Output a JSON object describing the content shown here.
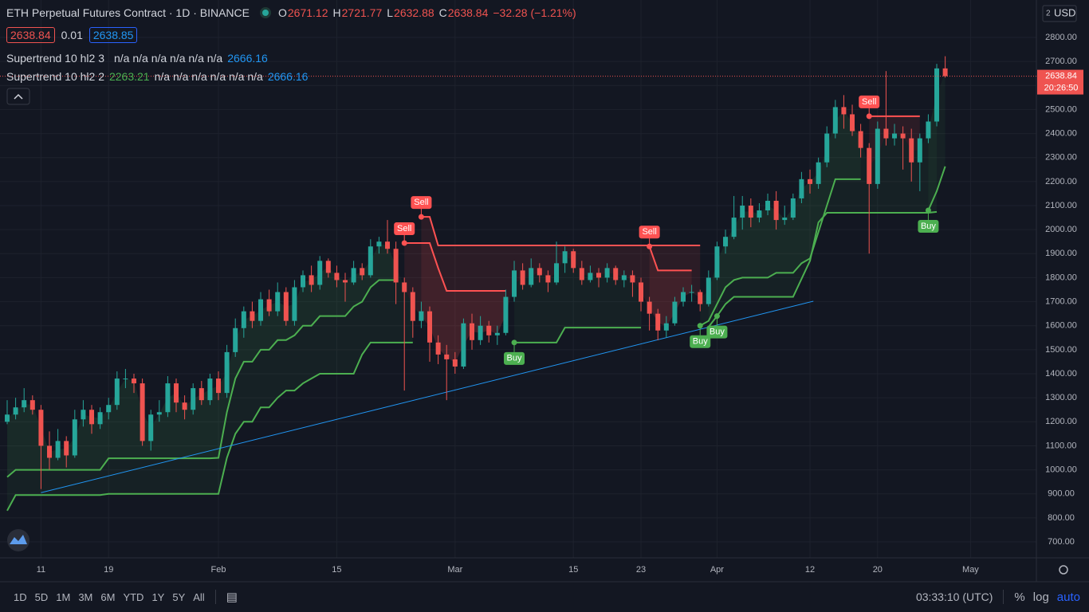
{
  "chart_data": {
    "type": "candlestick",
    "title": "ETH Perpetual Futures Contract · 1D · BINANCE",
    "ohlc_labels": [
      "O",
      "H",
      "L",
      "C"
    ],
    "change": "−32.28 (−1.21%)",
    "quote": {
      "bid": 2638.84,
      "spread": 0.01,
      "ask": 2638.85
    },
    "currency": "USD",
    "currency_badge": "2",
    "countdown": "20:26:50",
    "up_color": "#26a69a",
    "down_color": "#ef5350",
    "grid": true,
    "xlim": [
      -0.85,
      121.79
    ],
    "ylim": [
      633.7,
      2955.9
    ],
    "xticks": [
      {
        "value": 4,
        "label": "11"
      },
      {
        "value": 12,
        "label": "19"
      },
      {
        "value": 25,
        "label": "Feb"
      },
      {
        "value": 39,
        "label": "15"
      },
      {
        "value": 53,
        "label": "Mar"
      },
      {
        "value": 67,
        "label": "15"
      },
      {
        "value": 75,
        "label": "23"
      },
      {
        "value": 84,
        "label": "Apr"
      },
      {
        "value": 95,
        "label": "12"
      },
      {
        "value": 103,
        "label": "20"
      },
      {
        "value": 114,
        "label": "May"
      }
    ],
    "yticks": [
      {
        "value": 700,
        "label": "700.00"
      },
      {
        "value": 800,
        "label": "800.00"
      },
      {
        "value": 900,
        "label": "900.00"
      },
      {
        "value": 1000,
        "label": "1000.00"
      },
      {
        "value": 1100,
        "label": "1100.00"
      },
      {
        "value": 1200,
        "label": "1200.00"
      },
      {
        "value": 1300,
        "label": "1300.00"
      },
      {
        "value": 1400,
        "label": "1400.00"
      },
      {
        "value": 1500,
        "label": "1500.00"
      },
      {
        "value": 1600,
        "label": "1600.00"
      },
      {
        "value": 1700,
        "label": "1700.00"
      },
      {
        "value": 1800,
        "label": "1800.00"
      },
      {
        "value": 1900,
        "label": "1900.00"
      },
      {
        "value": 2000,
        "label": "2000.00"
      },
      {
        "value": 2100,
        "label": "2100.00"
      },
      {
        "value": 2200,
        "label": "2200.00"
      },
      {
        "value": 2300,
        "label": "2300.00"
      },
      {
        "value": 2400,
        "label": "2400.00"
      },
      {
        "value": 2500,
        "label": "2500.00"
      },
      {
        "value": 2600,
        "label": "2600.00"
      },
      {
        "value": 2700,
        "label": "2700.00"
      },
      {
        "value": 2800,
        "label": "2800.00"
      }
    ],
    "candles": [
      [
        1200,
        1290,
        1190,
        1230
      ],
      [
        1230,
        1300,
        1210,
        1260
      ],
      [
        1260,
        1340,
        1240,
        1290
      ],
      [
        1290,
        1310,
        1230,
        1250
      ],
      [
        1250,
        1270,
        920,
        1100
      ],
      [
        1100,
        1160,
        1000,
        1050
      ],
      [
        1050,
        1170,
        1040,
        1120
      ],
      [
        1120,
        1140,
        1010,
        1060
      ],
      [
        1060,
        1250,
        1050,
        1210
      ],
      [
        1210,
        1290,
        1180,
        1250
      ],
      [
        1250,
        1270,
        1150,
        1190
      ],
      [
        1190,
        1260,
        1170,
        1240
      ],
      [
        1240,
        1300,
        1210,
        1270
      ],
      [
        1270,
        1410,
        1250,
        1380
      ],
      [
        1380,
        1420,
        1340,
        1380
      ],
      [
        1380,
        1400,
        1320,
        1360
      ],
      [
        1360,
        1380,
        1100,
        1120
      ],
      [
        1120,
        1250,
        1080,
        1230
      ],
      [
        1230,
        1290,
        1200,
        1240
      ],
      [
        1240,
        1390,
        1220,
        1360
      ],
      [
        1360,
        1380,
        1240,
        1280
      ],
      [
        1280,
        1310,
        1210,
        1250
      ],
      [
        1250,
        1360,
        1230,
        1340
      ],
      [
        1340,
        1370,
        1270,
        1290
      ],
      [
        1290,
        1400,
        1270,
        1380
      ],
      [
        1380,
        1410,
        1290,
        1320
      ],
      [
        1320,
        1520,
        1300,
        1490
      ],
      [
        1490,
        1630,
        1470,
        1590
      ],
      [
        1590,
        1680,
        1550,
        1660
      ],
      [
        1660,
        1700,
        1590,
        1620
      ],
      [
        1620,
        1740,
        1600,
        1710
      ],
      [
        1710,
        1750,
        1640,
        1660
      ],
      [
        1660,
        1780,
        1640,
        1740
      ],
      [
        1740,
        1760,
        1600,
        1620
      ],
      [
        1620,
        1790,
        1600,
        1760
      ],
      [
        1760,
        1830,
        1740,
        1810
      ],
      [
        1810,
        1850,
        1740,
        1770
      ],
      [
        1770,
        1890,
        1750,
        1870
      ],
      [
        1870,
        1880,
        1800,
        1820
      ],
      [
        1820,
        1850,
        1760,
        1790
      ],
      [
        1790,
        1820,
        1700,
        1780
      ],
      [
        1780,
        1870,
        1770,
        1840
      ],
      [
        1840,
        1860,
        1790,
        1810
      ],
      [
        1810,
        1960,
        1800,
        1930
      ],
      [
        1930,
        1970,
        1900,
        1950
      ],
      [
        1950,
        2040,
        1900,
        1920
      ],
      [
        1920,
        1950,
        1690,
        1780
      ],
      [
        1780,
        1800,
        1330,
        1740
      ],
      [
        1740,
        1760,
        1550,
        1620
      ],
      [
        1620,
        1700,
        1590,
        1660
      ],
      [
        1660,
        1680,
        1450,
        1530
      ],
      [
        1530,
        1560,
        1440,
        1480
      ],
      [
        1480,
        1520,
        1290,
        1460
      ],
      [
        1460,
        1490,
        1400,
        1430
      ],
      [
        1430,
        1630,
        1420,
        1610
      ],
      [
        1610,
        1650,
        1500,
        1540
      ],
      [
        1540,
        1640,
        1520,
        1600
      ],
      [
        1600,
        1620,
        1530,
        1560
      ],
      [
        1560,
        1600,
        1520,
        1570
      ],
      [
        1570,
        1750,
        1560,
        1720
      ],
      [
        1720,
        1870,
        1700,
        1830
      ],
      [
        1830,
        1860,
        1750,
        1770
      ],
      [
        1770,
        1880,
        1760,
        1840
      ],
      [
        1840,
        1860,
        1780,
        1810
      ],
      [
        1810,
        1830,
        1740,
        1780
      ],
      [
        1780,
        1950,
        1770,
        1860
      ],
      [
        1860,
        1930,
        1820,
        1910
      ],
      [
        1910,
        1920,
        1820,
        1840
      ],
      [
        1840,
        1870,
        1770,
        1790
      ],
      [
        1790,
        1850,
        1780,
        1820
      ],
      [
        1820,
        1840,
        1760,
        1800
      ],
      [
        1800,
        1860,
        1780,
        1840
      ],
      [
        1840,
        1850,
        1770,
        1790
      ],
      [
        1790,
        1830,
        1760,
        1810
      ],
      [
        1810,
        1830,
        1720,
        1780
      ],
      [
        1780,
        1800,
        1660,
        1700
      ],
      [
        1700,
        1720,
        1580,
        1650
      ],
      [
        1650,
        1670,
        1540,
        1580
      ],
      [
        1580,
        1640,
        1550,
        1610
      ],
      [
        1610,
        1720,
        1600,
        1700
      ],
      [
        1700,
        1760,
        1680,
        1740
      ],
      [
        1740,
        1770,
        1700,
        1740
      ],
      [
        1740,
        1750,
        1660,
        1690
      ],
      [
        1690,
        1830,
        1680,
        1800
      ],
      [
        1800,
        1950,
        1790,
        1930
      ],
      [
        1930,
        2000,
        1900,
        1970
      ],
      [
        1970,
        2140,
        1960,
        2050
      ],
      [
        2050,
        2140,
        2000,
        2100
      ],
      [
        2100,
        2130,
        2010,
        2050
      ],
      [
        2050,
        2110,
        2030,
        2080
      ],
      [
        2080,
        2150,
        2060,
        2120
      ],
      [
        2120,
        2160,
        2000,
        2040
      ],
      [
        2040,
        2100,
        2020,
        2050
      ],
      [
        2050,
        2150,
        2040,
        2130
      ],
      [
        2130,
        2240,
        2110,
        2210
      ],
      [
        2210,
        2250,
        2150,
        2190
      ],
      [
        2190,
        2300,
        2170,
        2280
      ],
      [
        2280,
        2430,
        2260,
        2400
      ],
      [
        2400,
        2540,
        2380,
        2510
      ],
      [
        2510,
        2560,
        2420,
        2480
      ],
      [
        2480,
        2520,
        2390,
        2410
      ],
      [
        2410,
        2440,
        2300,
        2340
      ],
      [
        2340,
        2360,
        1900,
        2190
      ],
      [
        2190,
        2450,
        2170,
        2420
      ],
      [
        2420,
        2660,
        2350,
        2380
      ],
      [
        2380,
        2440,
        2350,
        2400
      ],
      [
        2400,
        2430,
        2250,
        2380
      ],
      [
        2380,
        2420,
        2200,
        2280
      ],
      [
        2280,
        2400,
        2160,
        2380
      ],
      [
        2380,
        2480,
        2360,
        2450
      ],
      [
        2450,
        2690,
        2430,
        2671.12
      ],
      [
        2671.12,
        2721.77,
        2632.88,
        2638.84
      ]
    ],
    "series": [
      {
        "name": "Supertrend 10 hl2 3",
        "up_color": "#4caf50",
        "down_color": "#ff5252",
        "up_fill": "rgba(76,175,80,0.07)",
        "down_fill": "rgba(255,82,82,0.1)",
        "legend_text": "n/a n/a n/a n/a n/a n/a",
        "legend_last": 2666.16,
        "up": [
          830,
          895,
          895,
          895,
          895,
          895,
          895,
          895,
          895,
          895,
          895,
          895,
          900,
          900,
          900,
          900,
          900,
          900,
          900,
          900,
          900,
          900,
          900,
          900,
          900,
          900,
          1050,
          1150,
          1200,
          1200,
          1260,
          1260,
          1300,
          1330,
          1330,
          1360,
          1380,
          1400,
          1400,
          1400,
          1400,
          1400,
          1480,
          1530,
          1530,
          1530,
          1530,
          1530,
          1530,
          null,
          null,
          null,
          null,
          null,
          null,
          null,
          null,
          null,
          null,
          null,
          null,
          null,
          null,
          null,
          null,
          null,
          null,
          null,
          null,
          null,
          null,
          null,
          null,
          null,
          null,
          null,
          null,
          null,
          null,
          null,
          null,
          null,
          null,
          1595,
          1640,
          1690,
          1720,
          1720,
          1720,
          1720,
          1720,
          1720,
          1720,
          1720,
          1795,
          1870,
          2030,
          2070,
          2070,
          2070,
          2070,
          2070,
          2070,
          2070,
          2070,
          2070,
          2070,
          2070,
          2070,
          2070,
          2073.98
        ],
        "down": [
          null,
          null,
          null,
          null,
          null,
          null,
          null,
          null,
          null,
          null,
          null,
          null,
          null,
          null,
          null,
          null,
          null,
          null,
          null,
          null,
          null,
          null,
          null,
          null,
          null,
          null,
          null,
          null,
          null,
          null,
          null,
          null,
          null,
          null,
          null,
          null,
          null,
          null,
          null,
          null,
          null,
          null,
          null,
          null,
          null,
          null,
          null,
          null,
          null,
          2053,
          2053,
          1934,
          1934,
          1934,
          1934,
          1934,
          1934,
          1934,
          1934,
          1934,
          1934,
          1934,
          1934,
          1934,
          1934,
          1934,
          1934,
          1934,
          1934,
          1934,
          1934,
          1934,
          1934,
          1934,
          1934,
          1934,
          1934,
          1934,
          1934,
          1934,
          1934,
          1934,
          1934,
          null,
          null,
          null,
          null,
          null,
          null,
          null,
          null,
          null,
          null,
          null,
          null,
          null,
          null,
          null,
          null,
          null,
          null,
          null,
          null,
          null,
          null,
          null,
          null,
          null,
          null,
          null,
          null
        ]
      },
      {
        "name": "Supertrend 10 hl2 2",
        "up_color": "#4caf50",
        "down_color": "#ff5252",
        "up_fill": "rgba(76,175,80,0.07)",
        "down_fill": "rgba(255,82,82,0.1)",
        "legend_text": "n/a n/a n/a n/a n/a n/a",
        "legend_last": 2666.16,
        "up": [
          970,
          1000,
          1000,
          1000,
          1000,
          1000,
          1000,
          1000,
          1000,
          1000,
          1000,
          1000,
          1048,
          1048,
          1048,
          1048,
          1048,
          1048,
          1048,
          1048,
          1048,
          1048,
          1048,
          1048,
          1048,
          1050,
          1240,
          1380,
          1450,
          1450,
          1500,
          1500,
          1540,
          1540,
          1560,
          1600,
          1600,
          1640,
          1640,
          1640,
          1640,
          1680,
          1700,
          1760,
          1790,
          1790,
          1790,
          null,
          null,
          null,
          null,
          null,
          null,
          null,
          null,
          null,
          null,
          null,
          null,
          null,
          1530,
          1530,
          1530,
          1530,
          1530,
          1530,
          1592,
          1592,
          1592,
          1592,
          1592,
          1592,
          1592,
          1592,
          1592,
          1592,
          null,
          null,
          null,
          null,
          null,
          null,
          1600,
          1620,
          1690,
          1760,
          1790,
          1800,
          1800,
          1800,
          1800,
          1820,
          1820,
          1820,
          1860,
          1880,
          1990,
          2100,
          2210,
          2210,
          2210,
          2210,
          null,
          null,
          null,
          null,
          null,
          null,
          null,
          2080,
          2160,
          2263.21
        ],
        "down": [
          null,
          null,
          null,
          null,
          null,
          null,
          null,
          null,
          null,
          null,
          null,
          null,
          null,
          null,
          null,
          null,
          null,
          null,
          null,
          null,
          null,
          null,
          null,
          null,
          null,
          null,
          null,
          null,
          null,
          null,
          null,
          null,
          null,
          null,
          null,
          null,
          null,
          null,
          null,
          null,
          null,
          null,
          null,
          null,
          null,
          null,
          null,
          1944,
          1944,
          1944,
          1944,
          1840,
          1745,
          1745,
          1745,
          1745,
          1745,
          1745,
          1745,
          1745,
          null,
          null,
          null,
          null,
          null,
          null,
          null,
          null,
          null,
          null,
          null,
          null,
          null,
          null,
          null,
          null,
          1930,
          1830,
          1830,
          1830,
          1830,
          1830,
          null,
          null,
          null,
          null,
          null,
          null,
          null,
          null,
          null,
          null,
          null,
          null,
          null,
          null,
          null,
          null,
          null,
          null,
          null,
          null,
          2472,
          2472,
          2472,
          2472,
          2472,
          2472,
          2472,
          null,
          null,
          null
        ]
      }
    ],
    "signals": [
      {
        "label": "Sell",
        "series": 1,
        "index": 47
      },
      {
        "label": "Sell",
        "series": 0,
        "index": 49
      },
      {
        "label": "Buy",
        "series": 1,
        "index": 60
      },
      {
        "label": "Sell",
        "series": 1,
        "index": 76
      },
      {
        "label": "Buy",
        "series": 1,
        "index": 82
      },
      {
        "label": "Buy",
        "series": 0,
        "index": 84
      },
      {
        "label": "Sell",
        "series": 1,
        "index": 102
      },
      {
        "label": "Buy",
        "series": 1,
        "index": 109
      }
    ],
    "trend_line": {
      "color": "#2196f3",
      "x": [
        4,
        95.4
      ],
      "y": [
        905,
        1702
      ]
    }
  },
  "toolbar": {
    "intervals": [
      "1D",
      "5D",
      "1M",
      "3M",
      "6M",
      "YTD",
      "1Y",
      "5Y",
      "All"
    ],
    "clock": "03:33:10 (UTC)",
    "percent": "%",
    "log": "log",
    "auto": "auto"
  }
}
